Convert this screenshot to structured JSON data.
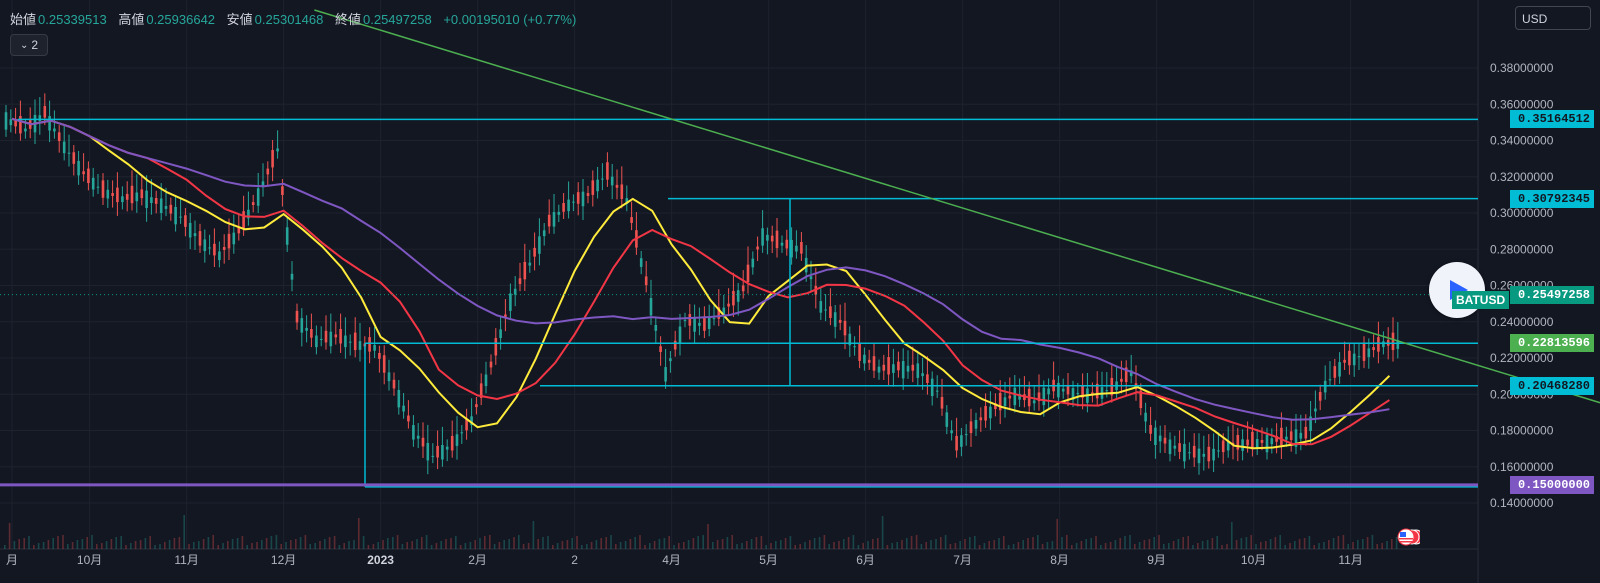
{
  "header": {
    "items": [
      {
        "key": "始値",
        "value": "0.25339513"
      },
      {
        "key": "高値",
        "value": "0.25936642"
      },
      {
        "key": "安値",
        "value": "0.25301468"
      },
      {
        "key": "終値",
        "value": "0.25497258"
      }
    ],
    "change": "+0.00195010 (+0.77%)",
    "indicator_toggle": "2"
  },
  "currency_button": "USD",
  "symbol_label": "BATUSD",
  "price_labels": [
    {
      "text": "0.35164512",
      "bg": "#00bcd4",
      "fg": "#131722",
      "price": 0.35164512
    },
    {
      "text": "0.30792345",
      "bg": "#00bcd4",
      "fg": "#131722",
      "price": 0.30792345
    },
    {
      "text": "0.25497258",
      "bg": "#089981",
      "fg": "#ffffff",
      "price": 0.25497258
    },
    {
      "text": "0.22813596",
      "bg": "#4caf50",
      "fg": "#ffffff",
      "price": 0.22813596
    },
    {
      "text": "0.20468280",
      "bg": "#00bcd4",
      "fg": "#131722",
      "price": 0.2046828
    },
    {
      "text": "0.15000000",
      "bg": "#7e57c2",
      "fg": "#ffffff",
      "price": 0.15
    }
  ],
  "chart_data": {
    "type": "line",
    "x_ticks": [
      "月",
      "10月",
      "11月",
      "12月",
      "2023",
      "2月",
      "2",
      "4月",
      "5月",
      "6月",
      "7月",
      "8月",
      "9月",
      "10月",
      "11月"
    ],
    "y_ticks": [
      "0.14000000",
      "0.16000000",
      "0.18000000",
      "0.20000000",
      "0.22000000",
      "0.24000000",
      "0.26000000",
      "0.28000000",
      "0.30000000",
      "0.32000000",
      "0.34000000",
      "0.36000000",
      "0.38000000"
    ],
    "ylim": [
      0.127,
      0.407
    ],
    "x_tick_index": [
      0,
      4,
      9,
      14,
      19,
      24,
      29,
      34,
      39,
      44,
      49,
      54,
      59,
      64,
      69
    ],
    "price_series": {
      "name": "BATUSD",
      "values": [
        0.352,
        0.346,
        0.355,
        0.337,
        0.322,
        0.312,
        0.308,
        0.31,
        0.305,
        0.298,
        0.285,
        0.277,
        0.29,
        0.31,
        0.335,
        0.242,
        0.23,
        0.232,
        0.228,
        0.226,
        0.205,
        0.18,
        0.166,
        0.172,
        0.186,
        0.216,
        0.252,
        0.272,
        0.295,
        0.305,
        0.31,
        0.322,
        0.307,
        0.262,
        0.212,
        0.241,
        0.238,
        0.246,
        0.258,
        0.288,
        0.283,
        0.28,
        0.249,
        0.24,
        0.222,
        0.214,
        0.215,
        0.214,
        0.202,
        0.172,
        0.184,
        0.193,
        0.2,
        0.196,
        0.204,
        0.201,
        0.2,
        0.203,
        0.212,
        0.18,
        0.172,
        0.168,
        0.166,
        0.172,
        0.173,
        0.174,
        0.176,
        0.178,
        0.205,
        0.218,
        0.222,
        0.228
      ]
    },
    "ma_series": [
      {
        "color": "#ffeb3b",
        "period": 5
      },
      {
        "color": "#f23645",
        "period": 8
      },
      {
        "color": "#7e57c2",
        "period": 18
      }
    ],
    "horizontal_levels": [
      0.35164512,
      0.30792345,
      0.22813596,
      0.2046828,
      0.15
    ],
    "current_price": 0.25497258,
    "trendline": {
      "from": {
        "index": 16,
        "price": 0.412
      },
      "to": {
        "index": 94,
        "price": 0.157
      },
      "color": "#4caf50"
    },
    "level_colors": {
      "cyan": "#00bcd4",
      "purple": "#7e57c2"
    }
  },
  "flag_icon": "us-flag-icon"
}
